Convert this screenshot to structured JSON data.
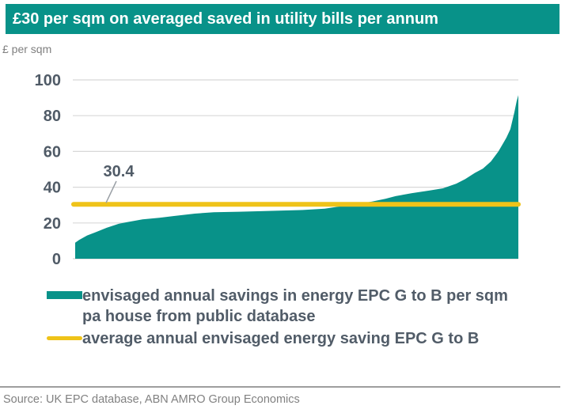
{
  "header": {
    "title": "£30 per sqm on averaged saved in utility bills per annum"
  },
  "colors": {
    "banner_teal": "#089289",
    "series_teal": "#089289",
    "average_yellow": "#efc319",
    "axis_text": "#505b67",
    "muted_text": "#7f7f7f",
    "gridline": "#d8d8d8",
    "leader_line": "#9aa0a6"
  },
  "legend": {
    "items": [
      {
        "label": "envisaged annual savings in energy EPC G to B per sqm pa house from public database",
        "swatch": "teal-area"
      },
      {
        "label": "average annual envisaged energy saving EPC G to B",
        "swatch": "yellow-line"
      }
    ]
  },
  "footer": {
    "source": "Source: UK EPC database, ABN AMRO Group Economics"
  },
  "chart_data": {
    "type": "area",
    "title": "£30 per sqm on averaged saved in utility bills per annum",
    "ylabel": "£ per sqm",
    "xlabel": "",
    "ylim": [
      0,
      100
    ],
    "yticks": [
      0,
      20,
      40,
      60,
      80,
      100
    ],
    "xticks": [],
    "grid": "horizontal",
    "legend_position": "bottom",
    "average_line": {
      "value": 30.4,
      "label": "30.4"
    },
    "series": [
      {
        "name": "envisaged annual savings in energy EPC G to B per sqm pa house from public database",
        "type": "area",
        "color": "#089289",
        "points_xfrac_value": [
          [
            0.0,
            9.0
          ],
          [
            0.009,
            10.5
          ],
          [
            0.027,
            13.0
          ],
          [
            0.045,
            14.7
          ],
          [
            0.071,
            17.3
          ],
          [
            0.098,
            19.5
          ],
          [
            0.116,
            20.4
          ],
          [
            0.152,
            22.0
          ],
          [
            0.19,
            22.9
          ],
          [
            0.223,
            23.9
          ],
          [
            0.27,
            25.2
          ],
          [
            0.313,
            26.0
          ],
          [
            0.37,
            26.3
          ],
          [
            0.42,
            26.6
          ],
          [
            0.46,
            26.9
          ],
          [
            0.509,
            27.2
          ],
          [
            0.563,
            28.0
          ],
          [
            0.59,
            29.0
          ],
          [
            0.616,
            30.0
          ],
          [
            0.65,
            31.2
          ],
          [
            0.67,
            32.0
          ],
          [
            0.7,
            33.5
          ],
          [
            0.723,
            35.0
          ],
          [
            0.76,
            36.7
          ],
          [
            0.8,
            38.2
          ],
          [
            0.83,
            39.4
          ],
          [
            0.86,
            42.0
          ],
          [
            0.88,
            44.5
          ],
          [
            0.902,
            48.0
          ],
          [
            0.92,
            50.4
          ],
          [
            0.938,
            54.4
          ],
          [
            0.955,
            60.0
          ],
          [
            0.973,
            67.7
          ],
          [
            0.982,
            72.5
          ],
          [
            0.991,
            82.0
          ],
          [
            0.996,
            88.0
          ],
          [
            1.0,
            91.5
          ]
        ]
      },
      {
        "name": "average annual envisaged energy saving EPC G to B",
        "type": "line",
        "color": "#efc319",
        "value": 30.4
      }
    ],
    "source": "Source: UK EPC database, ABN AMRO Group Economics"
  }
}
